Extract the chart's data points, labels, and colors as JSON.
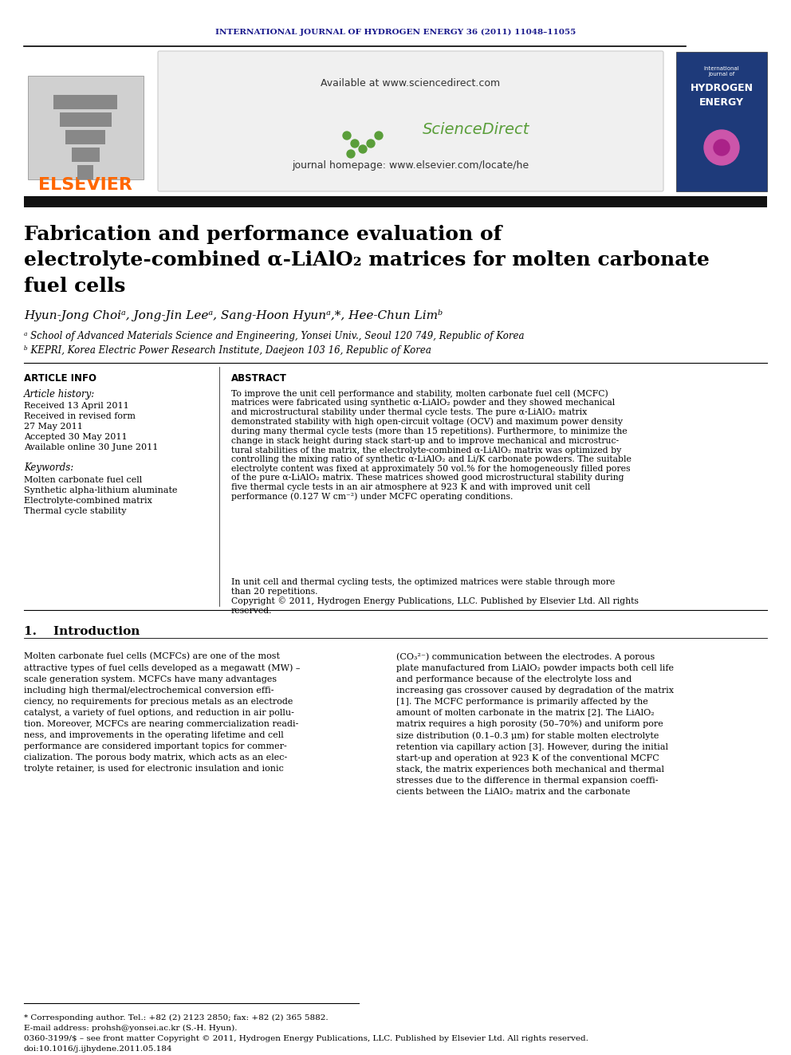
{
  "journal_header": "INTERNATIONAL JOURNAL OF HYDROGEN ENERGY 36 (2011) 11048–11055",
  "journal_header_color": "#1a1a8c",
  "elsevier_text": "ELSEVIER",
  "elsevier_color": "#ff6600",
  "available_text": "Available at www.sciencedirect.com",
  "journal_homepage": "journal homepage: www.elsevier.com/locate/he",
  "sciencedirect_text": "ScienceDirect",
  "title_line1": "Fabrication and performance evaluation of",
  "title_line2": "electrolyte-combined α-LiAlO₂ matrices for molten carbonate",
  "title_line3": "fuel cells",
  "authors": "Hyun-Jong Choiᵃ, Jong-Jin Leeᵃ, Sang-Hoon Hyunᵃ,*, Hee-Chun Limᵇ",
  "affil_a": "ᵃ School of Advanced Materials Science and Engineering, Yonsei Univ., Seoul 120 749, Republic of Korea",
  "affil_b": "ᵇ KEPRI, Korea Electric Power Research Institute, Daejeon 103 16, Republic of Korea",
  "article_info_title": "ARTICLE INFO",
  "article_history_title": "Article history:",
  "received_1": "Received 13 April 2011",
  "received_revised": "Received in revised form",
  "received_revised_date": "27 May 2011",
  "accepted": "Accepted 30 May 2011",
  "available_online": "Available online 30 June 2011",
  "keywords_title": "Keywords:",
  "keyword1": "Molten carbonate fuel cell",
  "keyword2": "Synthetic alpha-lithium aluminate",
  "keyword3": "Electrolyte-combined matrix",
  "keyword4": "Thermal cycle stability",
  "abstract_title": "ABSTRACT",
  "abstract_text": "To improve the unit cell performance and stability, molten carbonate fuel cell (MCFC)\nmatrices were fabricated using synthetic α-LiAlO₂ powder and they showed mechanical\nand microstructural stability under thermal cycle tests. The pure α-LiAlO₂ matrix\ndemonstrated stability with high open-circuit voltage (OCV) and maximum power density\nduring many thermal cycle tests (more than 15 repetitions). Furthermore, to minimize the\nchange in stack height during stack start-up and to improve mechanical and microstruc-\ntural stabilities of the matrix, the electrolyte-combined α-LiAlO₂ matrix was optimized by\ncontrolling the mixing ratio of synthetic α-LiAlO₂ and Li/K carbonate powders. The suitable\nelectrolyte content was fixed at approximately 50 vol.% for the homogeneously filled pores\nof the pure α-LiAlO₂ matrix. These matrices showed good microstructural stability during\nfive thermal cycle tests in an air atmosphere at 923 K and with improved unit cell\nperformance (0.127 W cm⁻²) under MCFC operating conditions.",
  "abstract_text2": "In unit cell and thermal cycling tests, the optimized matrices were stable through more\nthan 20 repetitions.\nCopyright © 2011, Hydrogen Energy Publications, LLC. Published by Elsevier Ltd. All rights\nreserved.",
  "intro_title": "1.    Introduction",
  "intro_text1": "Molten carbonate fuel cells (MCFCs) are one of the most\nattractive types of fuel cells developed as a megawatt (MW) –\nscale generation system. MCFCs have many advantages\nincluding high thermal/electrochemical conversion effi-\nciency, no requirements for precious metals as an electrode\ncatalyst, a variety of fuel options, and reduction in air pollu-\ntion. Moreover, MCFCs are nearing commercialization readi-\nness, and improvements in the operating lifetime and cell\nperformance are considered important topics for commer-\ncialization. The porous body matrix, which acts as an elec-\ntrolyte retainer, is used for electronic insulation and ionic",
  "intro_text2": "(CO₃²⁻) communication between the electrodes. A porous\nplate manufactured from LiAlO₂ powder impacts both cell life\nand performance because of the electrolyte loss and\nincreasing gas crossover caused by degradation of the matrix\n[1]. The MCFC performance is primarily affected by the\namount of molten carbonate in the matrix [2]. The LiAlO₂\nmatrix requires a high porosity (50–70%) and uniform pore\nsize distribution (0.1–0.3 μm) for stable molten electrolyte\nretention via capillary action [3]. However, during the initial\nstart-up and operation at 923 K of the conventional MCFC\nstack, the matrix experiences both mechanical and thermal\nstresses due to the difference in thermal expansion coeffi-\ncients between the LiAlO₂ matrix and the carbonate",
  "footnote_star": "* Corresponding author. Tel.: +82 (2) 2123 2850; fax: +82 (2) 365 5882.",
  "footnote_email": "E-mail address: prohsh@yonsei.ac.kr (S.-H. Hyun).",
  "footnote_issn": "0360-3199/$ – see front matter Copyright © 2011, Hydrogen Energy Publications, LLC. Published by Elsevier Ltd. All rights reserved.",
  "footnote_doi": "doi:10.1016/j.ijhydene.2011.05.184",
  "bg_color": "#ffffff",
  "text_color": "#000000",
  "header_bg": "#f5f5f5",
  "dark_bar_color": "#1a1a1a",
  "separator_color": "#000000"
}
